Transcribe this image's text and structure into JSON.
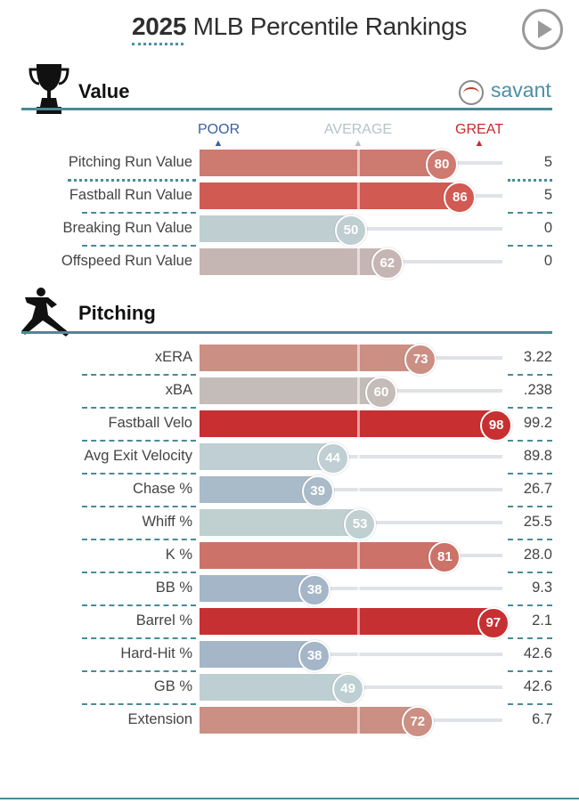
{
  "header": {
    "year": "2025",
    "title": "MLB Percentile Rankings"
  },
  "brand": "savant",
  "scale": {
    "poor": "POOR",
    "average": "AVERAGE",
    "great": "GREAT"
  },
  "colors": {
    "accent": "#4a8a97",
    "poor": "#3b5f9e",
    "average": "#b4c3c7",
    "great": "#c8292f"
  },
  "value_section": {
    "title": "Value",
    "rows": [
      {
        "label": "Pitching Run Value",
        "pct": 80,
        "value": "5",
        "color": "#cd7a70"
      },
      {
        "label": "Fastball Run Value",
        "pct": 86,
        "value": "5",
        "color": "#d15a53"
      },
      {
        "label": "Breaking Run Value",
        "pct": 50,
        "value": "0",
        "color": "#bfced1"
      },
      {
        "label": "Offspeed Run Value",
        "pct": 62,
        "value": "0",
        "color": "#c6b6b3"
      }
    ]
  },
  "pitching_section": {
    "title": "Pitching",
    "rows": [
      {
        "label": "xERA",
        "pct": 73,
        "value": "3.22",
        "color": "#cb8f84"
      },
      {
        "label": "xBA",
        "pct": 60,
        "value": ".238",
        "color": "#c4bcb8"
      },
      {
        "label": "Fastball Velo",
        "pct": 98,
        "value": "99.2",
        "color": "#c72f31"
      },
      {
        "label": "Avg Exit Velocity",
        "pct": 44,
        "value": "89.8",
        "color": "#bfcfd3"
      },
      {
        "label": "Chase %",
        "pct": 39,
        "value": "26.7",
        "color": "#a9bac8"
      },
      {
        "label": "Whiff %",
        "pct": 53,
        "value": "25.5",
        "color": "#c0cfd0"
      },
      {
        "label": "K %",
        "pct": 81,
        "value": "28.0",
        "color": "#cc7268"
      },
      {
        "label": "BB %",
        "pct": 38,
        "value": "9.3",
        "color": "#a4b6c7"
      },
      {
        "label": "Barrel %",
        "pct": 97,
        "value": "2.1",
        "color": "#c73032"
      },
      {
        "label": "Hard-Hit %",
        "pct": 38,
        "value": "42.6",
        "color": "#a4b6c7"
      },
      {
        "label": "GB %",
        "pct": 49,
        "value": "42.6",
        "color": "#bdcfd3"
      },
      {
        "label": "Extension",
        "pct": 72,
        "value": "6.7",
        "color": "#cb8f84"
      }
    ]
  }
}
